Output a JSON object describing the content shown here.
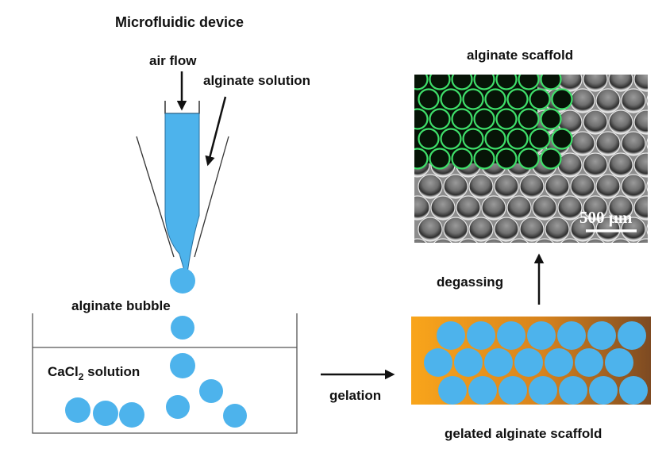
{
  "labels": {
    "device_title": "Microfluidic device",
    "air_flow": "air flow",
    "alginate_solution": "alginate solution",
    "alginate_bubble": "alginate bubble",
    "cacl2_main": "CaCl",
    "cacl2_sub": "2",
    "cacl2_tail": " solution",
    "gelation": "gelation",
    "degassing": "degassing",
    "scaffold_title": "alginate scaffold",
    "gelated_title": "gelated alginate scaffold",
    "scale_bar": "500 µm"
  },
  "colors": {
    "bubble": "#4db3ec",
    "outline": "#222222",
    "orange": "#f7a21b",
    "brown": "#8a4e1f",
    "green_cell": "#3fe06a"
  },
  "icons": {
    "arrow_down": "arrow-down",
    "arrow_right": "arrow-right",
    "arrow_up": "arrow-up"
  }
}
